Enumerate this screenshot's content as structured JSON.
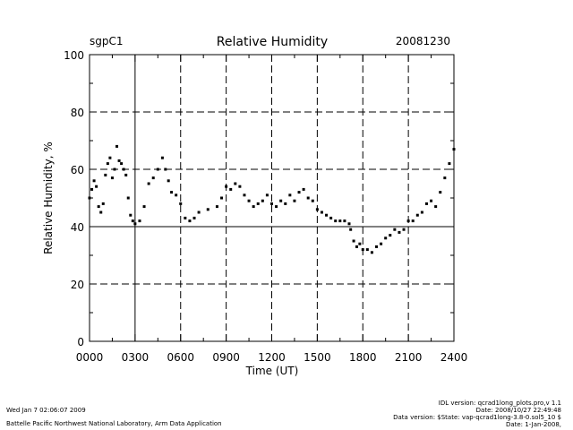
{
  "header": {
    "site": "sgpC1",
    "date": "20081230"
  },
  "footer": {
    "run_time": "Wed Jan  7 02:06:07 2009",
    "lab": "Battelle Pacific Northwest National Laboratory, Arm Data Application",
    "idl_version": "IDL version: qcrad1long_plots.pro,v 1.1",
    "code_date": "Date: 2008/10/27 22:49:48",
    "data_version": "Data version: $State: vap-qcrad1long-3.8-0.sol5_10 $",
    "data_date": "Date: 1-Jan-2008,"
  },
  "chart_data": {
    "type": "scatter",
    "title": "Relative Humidity",
    "xlabel": "Time (UT)",
    "ylabel": "Relative Humidity, %",
    "xlim": [
      0,
      2400
    ],
    "ylim": [
      0,
      100
    ],
    "x_ticks": [
      0,
      300,
      600,
      900,
      1200,
      1500,
      1800,
      2100,
      2400
    ],
    "x_tick_labels": [
      "0000",
      "0300",
      "0600",
      "0900",
      "1200",
      "1500",
      "1800",
      "2100",
      "2400"
    ],
    "y_ticks": [
      0,
      20,
      40,
      60,
      80,
      100
    ],
    "y_tick_labels": [
      "0",
      "20",
      "40",
      "60",
      "80",
      "100"
    ],
    "grid": "dashed",
    "reference_lines": {
      "solid_vertical_at": 300,
      "solid_horizontal_at": 40
    },
    "series": [
      {
        "name": "Relative Humidity",
        "x": [
          0,
          15,
          30,
          45,
          60,
          75,
          90,
          105,
          120,
          135,
          150,
          165,
          180,
          195,
          210,
          225,
          240,
          255,
          270,
          285,
          300,
          330,
          360,
          390,
          420,
          450,
          480,
          500,
          520,
          540,
          570,
          600,
          630,
          660,
          690,
          720,
          780,
          840,
          870,
          900,
          930,
          960,
          990,
          1020,
          1050,
          1080,
          1110,
          1140,
          1170,
          1200,
          1230,
          1260,
          1290,
          1320,
          1350,
          1380,
          1410,
          1440,
          1470,
          1500,
          1530,
          1560,
          1590,
          1620,
          1650,
          1680,
          1710,
          1720,
          1740,
          1760,
          1780,
          1800,
          1830,
          1860,
          1890,
          1920,
          1950,
          1980,
          2010,
          2040,
          2070,
          2100,
          2130,
          2160,
          2190,
          2220,
          2250,
          2280,
          2310,
          2340,
          2370,
          2400
        ],
        "y": [
          50,
          53,
          56,
          54,
          47,
          45,
          48,
          58,
          62,
          64,
          57,
          60,
          68,
          63,
          62,
          60,
          58,
          50,
          44,
          42,
          41,
          42,
          47,
          55,
          57,
          60,
          64,
          60,
          56,
          52,
          51,
          48,
          43,
          42,
          43,
          45,
          46,
          47,
          50,
          54,
          53,
          55,
          54,
          51,
          49,
          47,
          48,
          49,
          51,
          48,
          47,
          49,
          48,
          51,
          49,
          52,
          53,
          50,
          49,
          46,
          45,
          44,
          43,
          42,
          42,
          42,
          41,
          39,
          35,
          33,
          34,
          32,
          32,
          31,
          33,
          34,
          36,
          37,
          39,
          38,
          39,
          42,
          42,
          44,
          45,
          48,
          49,
          47,
          52,
          57,
          62,
          67
        ]
      }
    ]
  }
}
